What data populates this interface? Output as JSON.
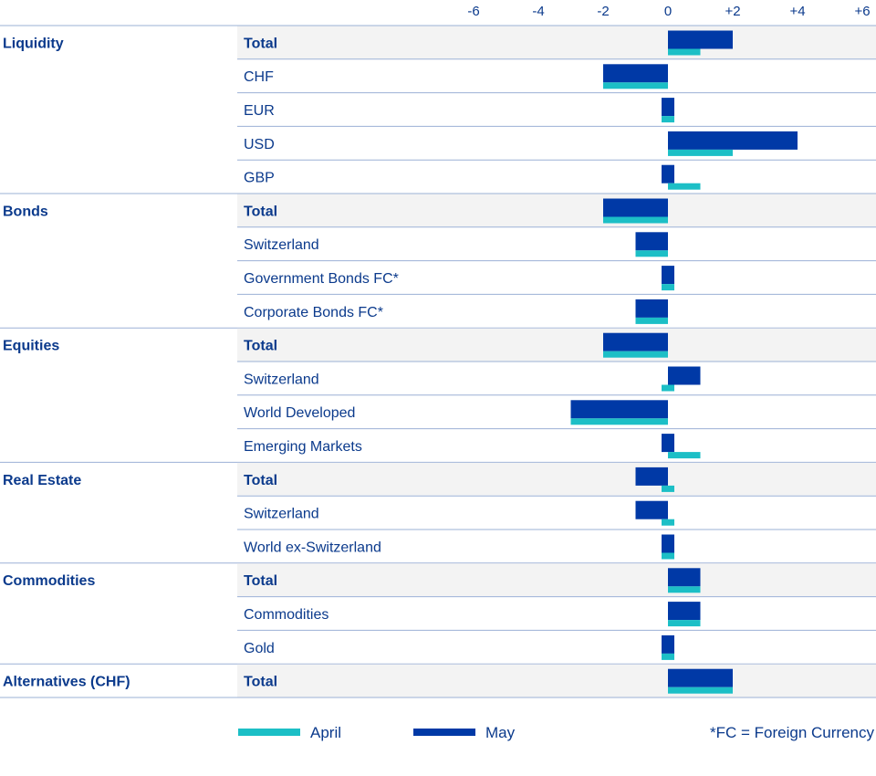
{
  "chart_data": {
    "type": "bar",
    "orientation": "horizontal",
    "x_ticks": [
      "-6",
      "-4",
      "-2",
      "0",
      "+2",
      "+4",
      "+6"
    ],
    "x_tick_values": [
      -6,
      -4,
      -2,
      0,
      2,
      4,
      6
    ],
    "xlim": [
      -6,
      6
    ],
    "groups": [
      {
        "name": "Liquidity",
        "rows": [
          {
            "label": "Total",
            "total": true,
            "april": 1,
            "may": 2
          },
          {
            "label": "CHF",
            "total": false,
            "april": -2,
            "may": -2
          },
          {
            "label": "EUR",
            "total": false,
            "april": 0,
            "may": 0
          },
          {
            "label": "USD",
            "total": false,
            "april": 2,
            "may": 4
          },
          {
            "label": "GBP",
            "total": false,
            "april": 1,
            "may": 0
          }
        ]
      },
      {
        "name": "Bonds",
        "rows": [
          {
            "label": "Total",
            "total": true,
            "april": -2,
            "may": -2
          },
          {
            "label": "Switzerland",
            "total": false,
            "april": -1,
            "may": -1
          },
          {
            "label": "Government Bonds FC*",
            "total": false,
            "april": 0,
            "may": 0
          },
          {
            "label": "Corporate Bonds FC*",
            "total": false,
            "april": -1,
            "may": -1
          }
        ]
      },
      {
        "name": "Equities",
        "rows": [
          {
            "label": "Total",
            "total": true,
            "april": -2,
            "may": -2
          },
          {
            "label": "Switzerland",
            "total": false,
            "april": 0,
            "may": 1
          },
          {
            "label": "World Developed",
            "total": false,
            "april": -3,
            "may": -3
          },
          {
            "label": "Emerging Markets",
            "total": false,
            "april": 1,
            "may": 0
          }
        ]
      },
      {
        "name": "Real Estate",
        "rows": [
          {
            "label": "Total",
            "total": true,
            "april": 0,
            "may": -1
          },
          {
            "label": "Switzerland",
            "total": false,
            "april": 0,
            "may": -1
          },
          {
            "label": "World ex-Switzerland",
            "total": false,
            "april": 0,
            "may": 0
          }
        ]
      },
      {
        "name": "Commodities",
        "rows": [
          {
            "label": "Total",
            "total": true,
            "april": 1,
            "may": 1
          },
          {
            "label": "Commodities",
            "total": false,
            "april": 1,
            "may": 1
          },
          {
            "label": "Gold",
            "total": false,
            "april": 0,
            "may": 0
          }
        ]
      },
      {
        "name": "Alternatives (CHF)",
        "rows": [
          {
            "label": "Total",
            "total": true,
            "april": 2,
            "may": 2
          }
        ]
      }
    ],
    "series": [
      {
        "name": "April",
        "color": "#1cbfc6"
      },
      {
        "name": "May",
        "color": "#0039a6"
      }
    ],
    "legend_position": "bottom",
    "footnote": "*FC = Foreign Currency",
    "colors": {
      "text": "#0b3a8c",
      "gridline": "#9bb0d6",
      "total_row_bg": "#f3f3f3"
    }
  }
}
